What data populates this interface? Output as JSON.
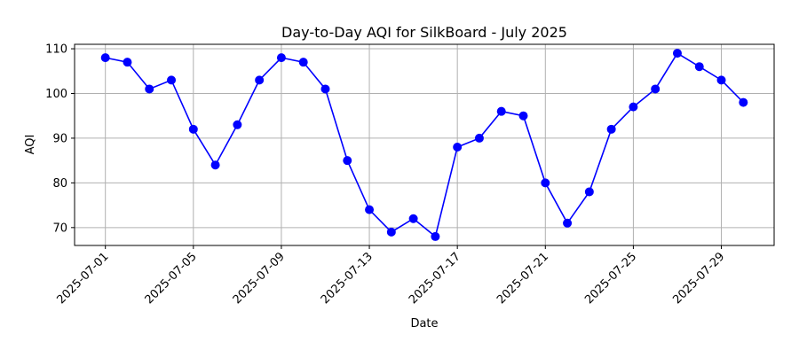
{
  "chart_data": {
    "type": "line",
    "title": "Day-to-Day AQI for SilkBoard - July 2025",
    "xlabel": "Date",
    "ylabel": "AQI",
    "x": [
      "2025-07-01",
      "2025-07-02",
      "2025-07-03",
      "2025-07-04",
      "2025-07-05",
      "2025-07-06",
      "2025-07-07",
      "2025-07-08",
      "2025-07-09",
      "2025-07-10",
      "2025-07-11",
      "2025-07-12",
      "2025-07-13",
      "2025-07-14",
      "2025-07-15",
      "2025-07-16",
      "2025-07-17",
      "2025-07-18",
      "2025-07-19",
      "2025-07-20",
      "2025-07-21",
      "2025-07-22",
      "2025-07-23",
      "2025-07-24",
      "2025-07-25",
      "2025-07-26",
      "2025-07-27",
      "2025-07-28",
      "2025-07-29",
      "2025-07-30"
    ],
    "series": [
      {
        "values": [
          108,
          107,
          101,
          103,
          92,
          84,
          93,
          103,
          108,
          107,
          101,
          85,
          74,
          69,
          72,
          68,
          88,
          90,
          96,
          95,
          80,
          71,
          78,
          92,
          97,
          101,
          109,
          106,
          103,
          98
        ],
        "color": "#0000ff",
        "marker": "circle"
      }
    ],
    "xticks": [
      "2025-07-01",
      "2025-07-05",
      "2025-07-09",
      "2025-07-13",
      "2025-07-17",
      "2025-07-21",
      "2025-07-25",
      "2025-07-29"
    ],
    "yticks": [
      70,
      80,
      90,
      100,
      110
    ],
    "xlim": [
      "2025-06-29.6",
      "2025-07-31.4"
    ],
    "ylim": [
      66,
      111
    ],
    "grid": true,
    "legend": "none"
  }
}
